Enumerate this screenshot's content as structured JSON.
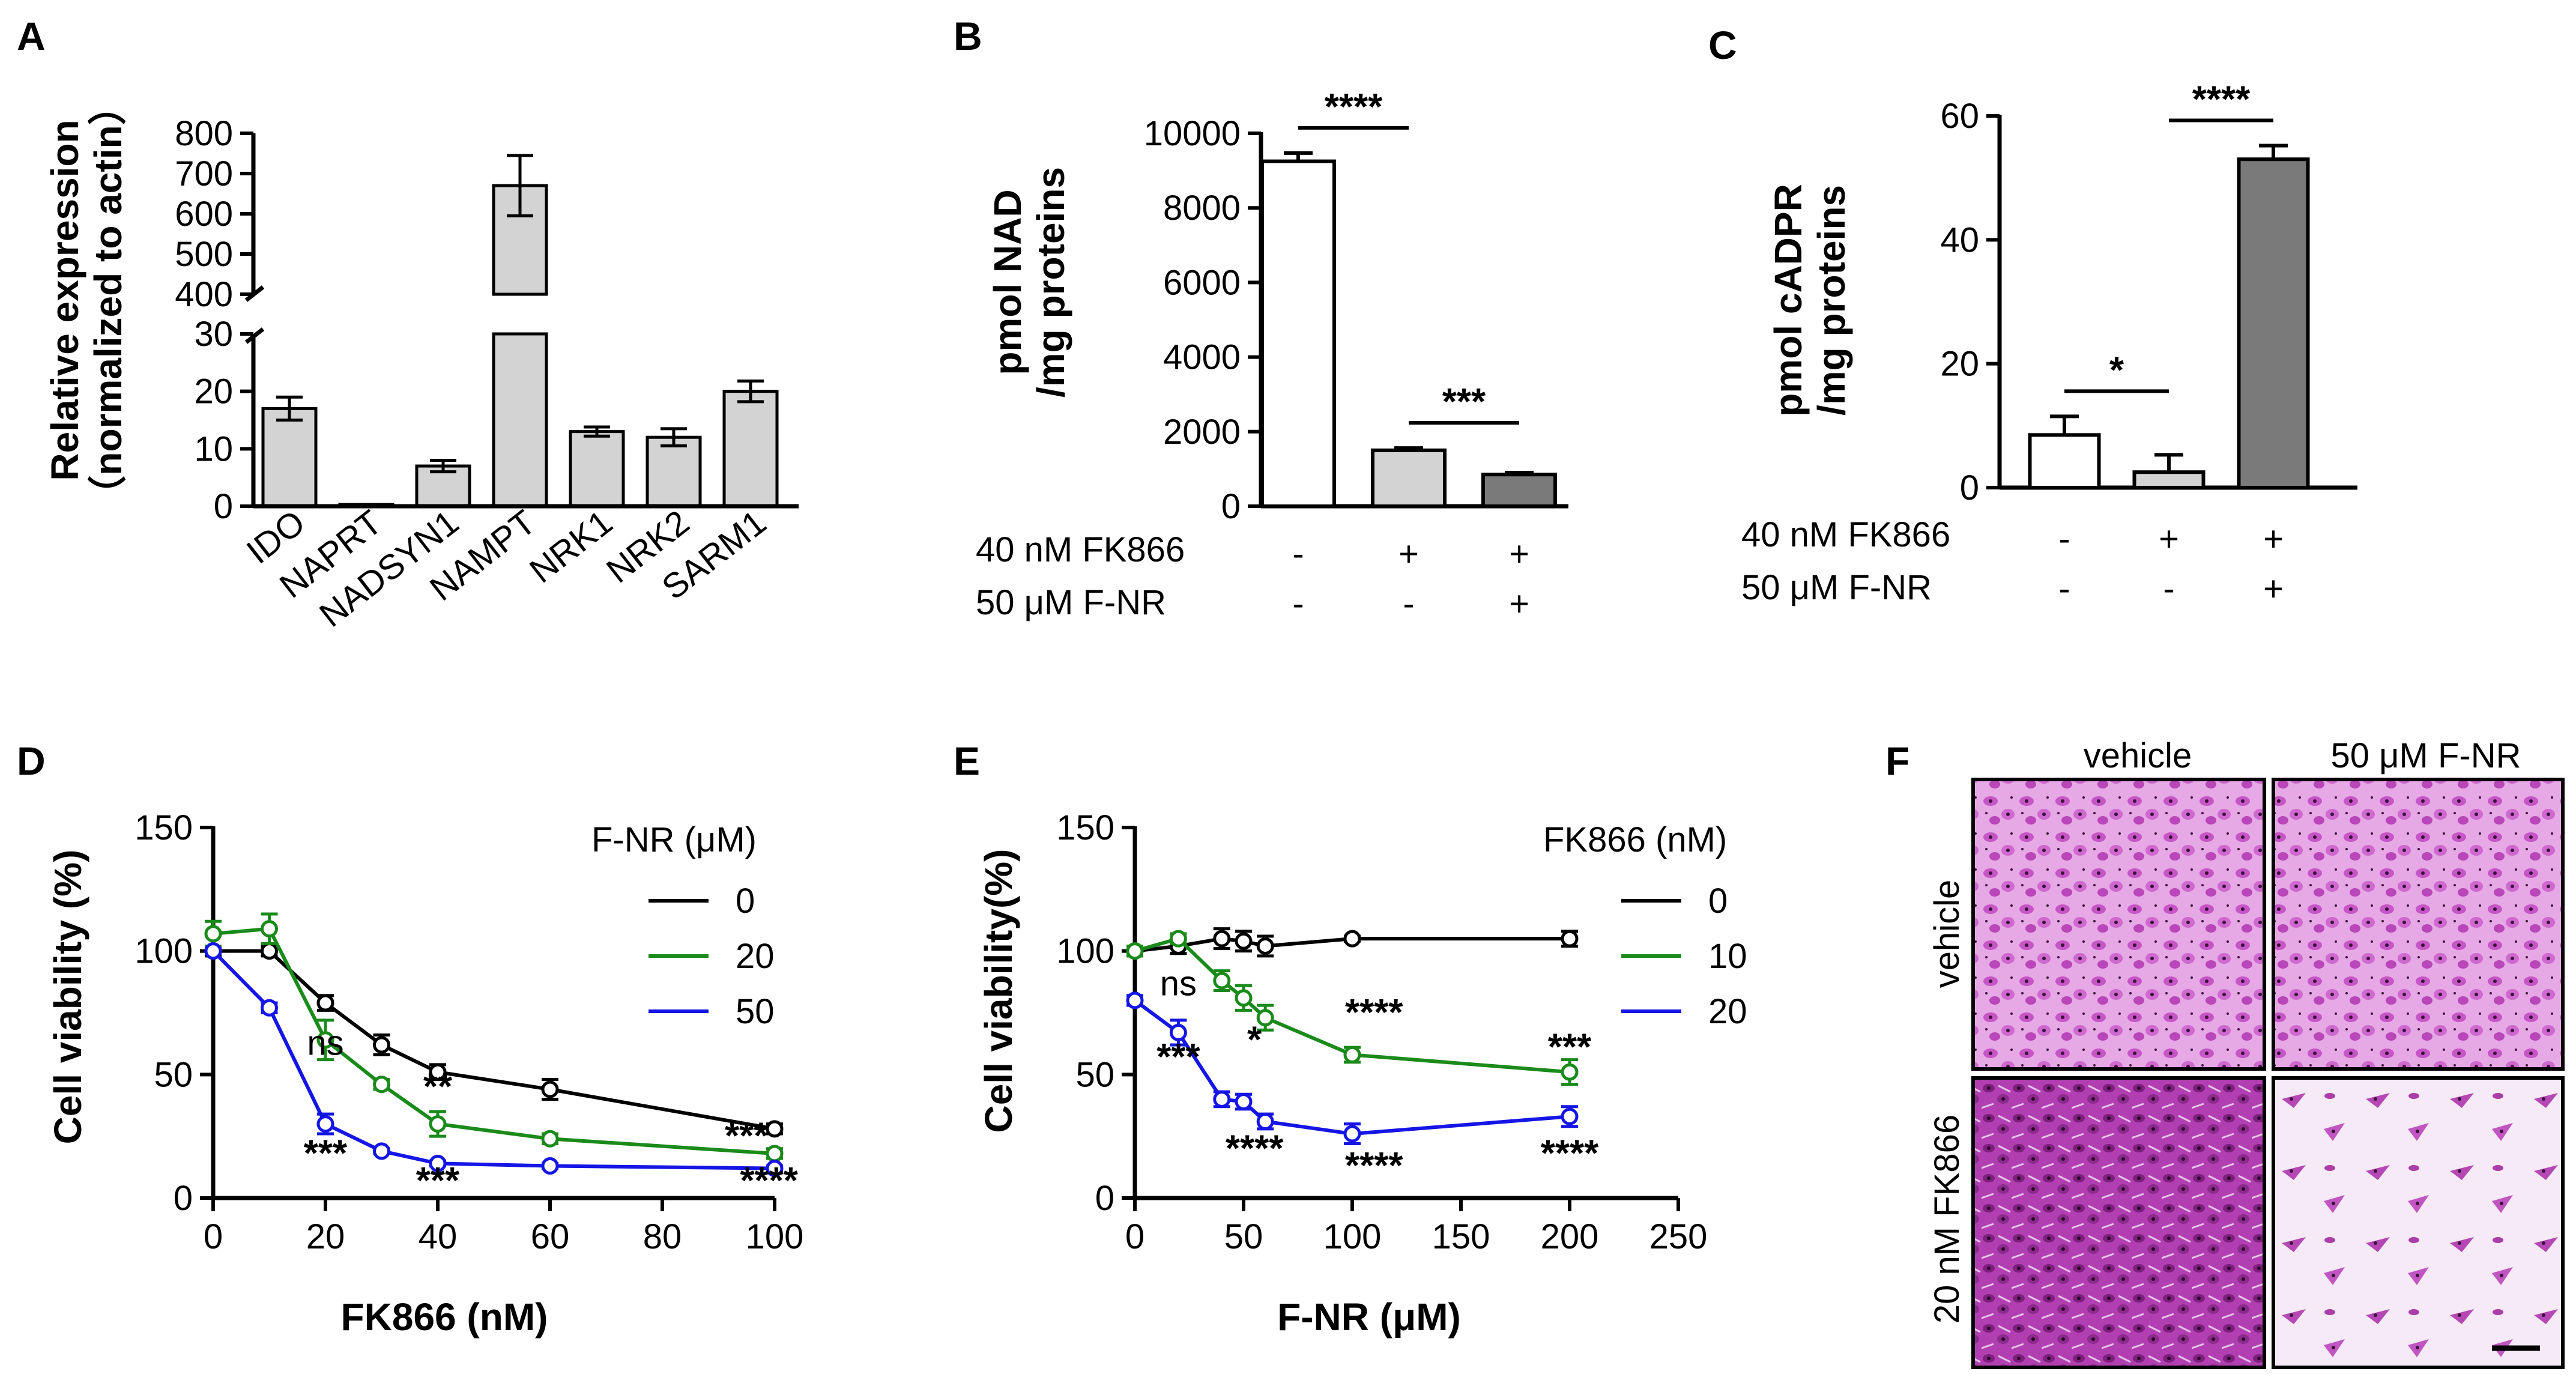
{
  "chart_data": [
    {
      "panel": "A",
      "type": "bar",
      "ylabel": "Relative expression",
      "ylabel2": "（normalized to actin）",
      "categories": [
        "IDO",
        "NAPRT",
        "NADSYN1",
        "NAMPT",
        "NRK1",
        "NRK2",
        "SARM1"
      ],
      "values": [
        17,
        0.3,
        7,
        670,
        13,
        12,
        20
      ],
      "errors": [
        2,
        0,
        1,
        75,
        0.8,
        1.5,
        1.8
      ],
      "axis_break": {
        "lower": [
          0,
          30
        ],
        "upper": [
          400,
          800
        ]
      },
      "lower_ticks": [
        "0",
        "10",
        "20",
        "30"
      ],
      "upper_ticks": [
        "400",
        "500",
        "600",
        "700",
        "800"
      ],
      "bar_color": "#d3d3d3"
    },
    {
      "panel": "B",
      "type": "bar",
      "ylabel": "pmol NAD",
      "ylabel2": "/mg proteins",
      "ylim": [
        0,
        10000
      ],
      "y_ticks": [
        "0",
        "2000",
        "4000",
        "6000",
        "8000",
        "10000"
      ],
      "values": [
        9250,
        1500,
        850
      ],
      "errors": [
        220,
        60,
        50
      ],
      "bar_colors": [
        "#ffffff",
        "#d3d3d3",
        "#7a7a7a"
      ],
      "row_labels": [
        "40 nM FK866",
        "50 μM F-NR"
      ],
      "rows": [
        [
          "-",
          "+",
          "+"
        ],
        [
          "-",
          "-",
          "+"
        ]
      ],
      "significance": [
        {
          "from": 0,
          "to": 1,
          "label": "****"
        },
        {
          "from": 1,
          "to": 2,
          "label": "***"
        }
      ]
    },
    {
      "panel": "C",
      "type": "bar",
      "ylabel": "pmol cADPR",
      "ylabel2": "/mg proteins",
      "ylim": [
        0,
        60
      ],
      "y_ticks": [
        "0",
        "20",
        "40",
        "60"
      ],
      "values": [
        8.5,
        2.5,
        53
      ],
      "errors": [
        3,
        2.8,
        2.2
      ],
      "bar_colors": [
        "#ffffff",
        "#d3d3d3",
        "#7a7a7a"
      ],
      "row_labels": [
        "40 nM FK866",
        "50 μM F-NR"
      ],
      "rows": [
        [
          "-",
          "+",
          "+"
        ],
        [
          "-",
          "-",
          "+"
        ]
      ],
      "significance": [
        {
          "from": 0,
          "to": 1,
          "label": "*"
        },
        {
          "from": 1,
          "to": 2,
          "label": "****"
        }
      ]
    },
    {
      "panel": "D",
      "type": "line",
      "xlabel": "FK866 (nM)",
      "ylabel": "Cell viability (%)",
      "xlim": [
        0,
        100
      ],
      "ylim": [
        0,
        150
      ],
      "x_ticks": [
        "0",
        "20",
        "40",
        "60",
        "80",
        "100"
      ],
      "y_ticks": [
        "0",
        "50",
        "100",
        "150"
      ],
      "legend_title": "F-NR (μM)",
      "series": [
        {
          "name": "0",
          "color": "#000000",
          "x": [
            0,
            10,
            20,
            30,
            40,
            60,
            100
          ],
          "y": [
            100,
            100,
            79,
            62,
            51,
            44,
            28
          ],
          "err": [
            2,
            2,
            3,
            4,
            3,
            4,
            2
          ]
        },
        {
          "name": "20",
          "color": "#1a8a1a",
          "x": [
            0,
            10,
            20,
            30,
            40,
            60,
            100
          ],
          "y": [
            107,
            109,
            64,
            46,
            30,
            24,
            18
          ],
          "err": [
            5,
            6,
            8,
            2,
            5,
            2,
            2
          ]
        },
        {
          "name": "50",
          "color": "#1515e6",
          "x": [
            0,
            10,
            20,
            30,
            40,
            60,
            100
          ],
          "y": [
            100,
            77,
            30,
            19,
            14,
            13,
            12
          ],
          "err": [
            1,
            2,
            4,
            1,
            1,
            1,
            1
          ]
        }
      ],
      "annotations": [
        {
          "x": 20,
          "y": 58,
          "label": "ns"
        },
        {
          "x": 20,
          "y": 13,
          "label": "***"
        },
        {
          "x": 40,
          "y": 40,
          "label": "**"
        },
        {
          "x": 40,
          "y": 2,
          "label": "***"
        },
        {
          "x": 95,
          "y": 20,
          "label": "***"
        },
        {
          "x": 99,
          "y": 2,
          "label": "****"
        }
      ]
    },
    {
      "panel": "E",
      "type": "line",
      "xlabel": "F-NR (μM)",
      "ylabel": "Cell viability(%)",
      "xlim": [
        0,
        250
      ],
      "ylim": [
        0,
        150
      ],
      "x_ticks": [
        "0",
        "50",
        "100",
        "150",
        "200",
        "250"
      ],
      "y_ticks": [
        "0",
        "50",
        "100",
        "150"
      ],
      "legend_title": "FK866 (nM)",
      "series": [
        {
          "name": "0",
          "color": "#000000",
          "x": [
            0,
            20,
            40,
            50,
            60,
            100,
            200
          ],
          "y": [
            100,
            102,
            105,
            104,
            102,
            105,
            105
          ],
          "err": [
            2,
            3,
            4,
            4,
            4,
            1,
            3
          ]
        },
        {
          "name": "10",
          "color": "#1a8a1a",
          "x": [
            0,
            20,
            40,
            50,
            60,
            100,
            200
          ],
          "y": [
            100,
            105,
            88,
            81,
            73,
            58,
            51
          ],
          "err": [
            2,
            2,
            4,
            5,
            5,
            3,
            5
          ]
        },
        {
          "name": "20",
          "color": "#1515e6",
          "x": [
            0,
            20,
            40,
            50,
            60,
            100,
            200
          ],
          "y": [
            80,
            67,
            40,
            39,
            31,
            26,
            33
          ],
          "err": [
            2,
            5,
            3,
            3,
            3,
            4,
            4
          ]
        }
      ],
      "annotations": [
        {
          "x": 20,
          "y": 82,
          "label": "ns"
        },
        {
          "x": 20,
          "y": 52,
          "label": "***"
        },
        {
          "x": 55,
          "y": 59,
          "label": "*"
        },
        {
          "x": 110,
          "y": 70,
          "label": "****"
        },
        {
          "x": 55,
          "y": 15,
          "label": "****"
        },
        {
          "x": 110,
          "y": 8,
          "label": "****"
        },
        {
          "x": 200,
          "y": 56,
          "label": "***"
        },
        {
          "x": 200,
          "y": 13,
          "label": "****"
        }
      ]
    }
  ],
  "panel_labels": [
    "A",
    "B",
    "C",
    "D",
    "E",
    "F"
  ],
  "micrographs": {
    "col_labels": [
      "vehicle",
      "50 μM F-NR"
    ],
    "row_labels": [
      "vehicle",
      "20 nM FK866"
    ]
  }
}
